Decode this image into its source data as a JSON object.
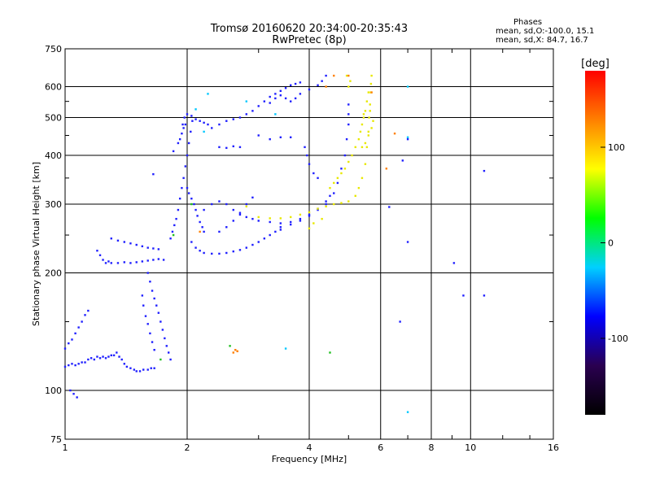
{
  "header": {
    "title_line1": "Tromsø 20160620 20:34:00-20:35:43",
    "title_line2": "RwPretec (8p)"
  },
  "legend_info": {
    "heading": "Phases",
    "line1": "mean, sd,O:-100.0, 15.1",
    "line2": "mean, sd,X:  84.7, 16.7"
  },
  "colorbar": {
    "unit_label": "[deg]",
    "ticks": [
      {
        "value": 100,
        "label": "100"
      },
      {
        "value": 0,
        "label": "0"
      },
      {
        "value": -100,
        "label": "-100"
      }
    ],
    "range": [
      -180,
      180
    ],
    "stops": [
      "#000000",
      "#2a0050",
      "#0000ff",
      "#00d0ff",
      "#00ff00",
      "#ffff00",
      "#ff8000",
      "#ff0000"
    ]
  },
  "chart_data": {
    "type": "scatter",
    "title": "Tromsø 20160620 20:34:00-20:35:43",
    "subtitle": "RwPretec (8p)",
    "xlabel": "Frequency [MHz]",
    "ylabel": "Stationary phase Virtual Height [km]",
    "x_scale": "log",
    "y_scale": "log",
    "xlim": [
      1,
      16
    ],
    "ylim": [
      75,
      750
    ],
    "x_ticks": [
      1,
      2,
      4,
      6,
      8,
      10,
      16
    ],
    "y_ticks": [
      75,
      100,
      200,
      300,
      400,
      500,
      600,
      750
    ],
    "grid": true,
    "series": [
      {
        "name": "O",
        "color": "#2020ff",
        "points": [
          [
            1.0,
            115
          ],
          [
            1.02,
            116
          ],
          [
            1.04,
            117
          ],
          [
            1.06,
            116
          ],
          [
            1.08,
            117
          ],
          [
            1.1,
            118
          ],
          [
            1.12,
            118
          ],
          [
            1.14,
            120
          ],
          [
            1.16,
            121
          ],
          [
            1.18,
            120
          ],
          [
            1.2,
            122
          ],
          [
            1.22,
            121
          ],
          [
            1.24,
            122
          ],
          [
            1.26,
            121
          ],
          [
            1.28,
            122
          ],
          [
            1.3,
            123
          ],
          [
            1.32,
            123
          ],
          [
            1.34,
            125
          ],
          [
            1.36,
            122
          ],
          [
            1.38,
            120
          ],
          [
            1.4,
            117
          ],
          [
            1.42,
            115
          ],
          [
            1.45,
            114
          ],
          [
            1.48,
            113
          ],
          [
            1.5,
            112
          ],
          [
            1.53,
            112
          ],
          [
            1.56,
            113
          ],
          [
            1.6,
            113
          ],
          [
            1.63,
            114
          ],
          [
            1.66,
            114
          ],
          [
            1.0,
            128
          ],
          [
            1.02,
            132
          ],
          [
            1.04,
            135
          ],
          [
            1.06,
            140
          ],
          [
            1.08,
            145
          ],
          [
            1.1,
            150
          ],
          [
            1.12,
            156
          ],
          [
            1.14,
            160
          ],
          [
            1.2,
            228
          ],
          [
            1.22,
            222
          ],
          [
            1.24,
            216
          ],
          [
            1.26,
            212
          ],
          [
            1.28,
            214
          ],
          [
            1.3,
            212
          ],
          [
            1.35,
            212
          ],
          [
            1.4,
            213
          ],
          [
            1.45,
            212
          ],
          [
            1.5,
            213
          ],
          [
            1.55,
            214
          ],
          [
            1.6,
            215
          ],
          [
            1.65,
            216
          ],
          [
            1.7,
            217
          ],
          [
            1.75,
            216
          ],
          [
            1.3,
            245
          ],
          [
            1.35,
            242
          ],
          [
            1.4,
            240
          ],
          [
            1.45,
            238
          ],
          [
            1.5,
            236
          ],
          [
            1.55,
            234
          ],
          [
            1.6,
            232
          ],
          [
            1.65,
            231
          ],
          [
            1.7,
            230
          ],
          [
            1.6,
            200
          ],
          [
            1.62,
            190
          ],
          [
            1.64,
            180
          ],
          [
            1.66,
            172
          ],
          [
            1.68,
            165
          ],
          [
            1.7,
            158
          ],
          [
            1.72,
            150
          ],
          [
            1.74,
            143
          ],
          [
            1.76,
            136
          ],
          [
            1.78,
            130
          ],
          [
            1.8,
            125
          ],
          [
            1.82,
            120
          ],
          [
            1.55,
            175
          ],
          [
            1.56,
            165
          ],
          [
            1.58,
            155
          ],
          [
            1.6,
            148
          ],
          [
            1.62,
            140
          ],
          [
            1.64,
            133
          ],
          [
            1.66,
            127
          ],
          [
            1.82,
            245
          ],
          [
            1.84,
            255
          ],
          [
            1.86,
            265
          ],
          [
            1.88,
            275
          ],
          [
            1.9,
            290
          ],
          [
            1.92,
            310
          ],
          [
            1.94,
            330
          ],
          [
            1.96,
            350
          ],
          [
            1.98,
            375
          ],
          [
            2.0,
            400
          ],
          [
            2.02,
            430
          ],
          [
            2.04,
            460
          ],
          [
            2.06,
            490
          ],
          [
            1.95,
            480
          ],
          [
            1.97,
            500
          ],
          [
            2.0,
            510
          ],
          [
            2.05,
            505
          ],
          [
            2.1,
            495
          ],
          [
            2.15,
            490
          ],
          [
            2.2,
            485
          ],
          [
            2.25,
            480
          ],
          [
            2.0,
            330
          ],
          [
            2.02,
            320
          ],
          [
            2.05,
            310
          ],
          [
            2.08,
            300
          ],
          [
            2.1,
            290
          ],
          [
            2.12,
            280
          ],
          [
            2.15,
            270
          ],
          [
            2.18,
            262
          ],
          [
            2.2,
            255
          ],
          [
            2.05,
            240
          ],
          [
            2.1,
            232
          ],
          [
            2.15,
            228
          ],
          [
            2.2,
            225
          ],
          [
            2.3,
            224
          ],
          [
            2.4,
            224
          ],
          [
            2.5,
            225
          ],
          [
            2.6,
            227
          ],
          [
            2.7,
            229
          ],
          [
            2.8,
            232
          ],
          [
            2.9,
            236
          ],
          [
            3.0,
            240
          ],
          [
            3.1,
            245
          ],
          [
            3.2,
            250
          ],
          [
            3.3,
            255
          ],
          [
            3.4,
            258
          ],
          [
            2.2,
            290
          ],
          [
            2.3,
            300
          ],
          [
            2.4,
            305
          ],
          [
            2.5,
            300
          ],
          [
            2.6,
            290
          ],
          [
            2.7,
            282
          ],
          [
            2.8,
            278
          ],
          [
            2.9,
            275
          ],
          [
            3.0,
            272
          ],
          [
            3.2,
            270
          ],
          [
            3.4,
            268
          ],
          [
            3.6,
            270
          ],
          [
            3.8,
            275
          ],
          [
            4.0,
            282
          ],
          [
            4.2,
            292
          ],
          [
            4.4,
            305
          ],
          [
            4.5,
            315
          ],
          [
            3.4,
            262
          ],
          [
            3.6,
            266
          ],
          [
            3.8,
            272
          ],
          [
            4.0,
            280
          ],
          [
            4.2,
            290
          ],
          [
            4.4,
            300
          ],
          [
            4.6,
            320
          ],
          [
            4.7,
            340
          ],
          [
            4.8,
            370
          ],
          [
            4.9,
            400
          ],
          [
            4.95,
            440
          ],
          [
            5.0,
            480
          ],
          [
            5.0,
            510
          ],
          [
            5.0,
            540
          ],
          [
            2.3,
            470
          ],
          [
            2.4,
            480
          ],
          [
            2.5,
            490
          ],
          [
            2.6,
            495
          ],
          [
            2.7,
            500
          ],
          [
            2.8,
            510
          ],
          [
            2.9,
            520
          ],
          [
            3.0,
            535
          ],
          [
            3.1,
            550
          ],
          [
            3.2,
            565
          ],
          [
            3.3,
            575
          ],
          [
            3.4,
            585
          ],
          [
            3.5,
            595
          ],
          [
            3.6,
            605
          ],
          [
            3.7,
            610
          ],
          [
            3.8,
            615
          ],
          [
            3.2,
            545
          ],
          [
            3.3,
            560
          ],
          [
            3.4,
            570
          ],
          [
            3.5,
            560
          ],
          [
            3.6,
            550
          ],
          [
            3.7,
            560
          ],
          [
            3.8,
            575
          ],
          [
            4.0,
            590
          ],
          [
            4.2,
            605
          ],
          [
            4.3,
            620
          ],
          [
            4.4,
            640
          ],
          [
            2.4,
            420
          ],
          [
            2.5,
            418
          ],
          [
            2.6,
            422
          ],
          [
            2.7,
            420
          ],
          [
            3.0,
            450
          ],
          [
            3.2,
            440
          ],
          [
            3.4,
            445
          ],
          [
            3.6,
            445
          ],
          [
            2.4,
            255
          ],
          [
            2.5,
            262
          ],
          [
            2.6,
            272
          ],
          [
            2.7,
            285
          ],
          [
            2.8,
            300
          ],
          [
            2.9,
            312
          ],
          [
            1.85,
            410
          ],
          [
            1.9,
            430
          ],
          [
            1.92,
            440
          ],
          [
            1.94,
            455
          ],
          [
            1.96,
            470
          ],
          [
            1.98,
            480
          ],
          [
            3.9,
            420
          ],
          [
            3.95,
            400
          ],
          [
            4.0,
            380
          ],
          [
            4.1,
            360
          ],
          [
            4.2,
            350
          ],
          [
            1.03,
            100
          ],
          [
            1.05,
            98
          ],
          [
            1.07,
            96
          ],
          [
            6.3,
            295
          ],
          [
            7.0,
            240
          ],
          [
            9.1,
            212
          ],
          [
            9.6,
            175
          ],
          [
            10.8,
            175
          ],
          [
            10.8,
            365
          ],
          [
            6.7,
            150
          ],
          [
            6.8,
            388
          ],
          [
            7.0,
            440
          ],
          [
            1.65,
            358
          ]
        ]
      },
      {
        "name": "X",
        "color": "#e8e800",
        "points": [
          [
            2.8,
            296
          ],
          [
            3.0,
            278
          ],
          [
            3.2,
            276
          ],
          [
            3.4,
            276
          ],
          [
            3.6,
            278
          ],
          [
            3.8,
            282
          ],
          [
            4.0,
            286
          ],
          [
            4.2,
            292
          ],
          [
            4.4,
            296
          ],
          [
            4.6,
            300
          ],
          [
            4.8,
            302
          ],
          [
            5.0,
            305
          ],
          [
            5.2,
            315
          ],
          [
            5.3,
            330
          ],
          [
            5.4,
            350
          ],
          [
            5.5,
            380
          ],
          [
            5.55,
            420
          ],
          [
            5.6,
            460
          ],
          [
            5.62,
            500
          ],
          [
            5.65,
            540
          ],
          [
            5.67,
            580
          ],
          [
            5.68,
            610
          ],
          [
            5.7,
            640
          ],
          [
            4.5,
            330
          ],
          [
            4.6,
            340
          ],
          [
            4.7,
            350
          ],
          [
            4.8,
            360
          ],
          [
            4.9,
            370
          ],
          [
            5.0,
            385
          ],
          [
            5.1,
            400
          ],
          [
            5.2,
            420
          ],
          [
            5.3,
            440
          ],
          [
            5.35,
            460
          ],
          [
            5.4,
            480
          ],
          [
            5.45,
            500
          ],
          [
            5.5,
            520
          ],
          [
            5.55,
            550
          ],
          [
            5.6,
            580
          ],
          [
            5.4,
            420
          ],
          [
            5.5,
            430
          ],
          [
            5.6,
            450
          ],
          [
            5.7,
            470
          ],
          [
            5.45,
            510
          ],
          [
            5.65,
            520
          ],
          [
            5.75,
            490
          ],
          [
            5.0,
            600
          ],
          [
            5.05,
            620
          ],
          [
            4.95,
            640
          ],
          [
            4.0,
            260
          ],
          [
            4.1,
            268
          ],
          [
            4.3,
            275
          ]
        ]
      },
      {
        "name": "other",
        "color": "#ff8000",
        "points": [
          [
            2.6,
            125
          ],
          [
            2.63,
            127
          ],
          [
            2.66,
            126
          ],
          [
            6.5,
            455
          ],
          [
            6.2,
            370
          ],
          [
            4.4,
            600
          ],
          [
            4.6,
            640
          ],
          [
            5.0,
            640
          ],
          [
            2.15,
            255
          ],
          [
            5.7,
            580
          ]
        ]
      },
      {
        "name": "cyan",
        "color": "#00c8ff",
        "points": [
          [
            3.5,
            128
          ],
          [
            7.0,
            88
          ],
          [
            7.0,
            445
          ],
          [
            7.0,
            600
          ],
          [
            2.2,
            460
          ],
          [
            2.1,
            525
          ],
          [
            2.25,
            575
          ],
          [
            2.8,
            550
          ],
          [
            3.3,
            510
          ]
        ]
      },
      {
        "name": "green",
        "color": "#20c020",
        "points": [
          [
            1.72,
            120
          ],
          [
            2.05,
            300
          ],
          [
            4.5,
            125
          ],
          [
            2.55,
            130
          ],
          [
            1.85,
            250
          ]
        ]
      }
    ]
  }
}
